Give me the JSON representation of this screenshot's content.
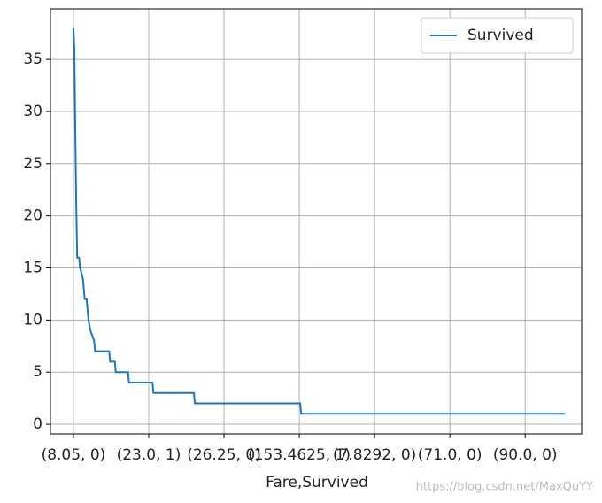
{
  "chart_data": {
    "type": "line",
    "xlabel": "Fare,Survived",
    "x": [
      0,
      0.5,
      1,
      1.5,
      2,
      3,
      3.5,
      5,
      6,
      7,
      7.5,
      8,
      9,
      10,
      11,
      11.5,
      19,
      19.5,
      22,
      22.5,
      29,
      29.5,
      42,
      42.5,
      64,
      64.5,
      120.5,
      121,
      261
    ],
    "series": [
      {
        "name": "Survived",
        "color": "#1f77b4",
        "values": [
          38,
          36,
          28,
          21,
          16,
          16,
          15,
          14,
          12,
          12,
          11,
          10,
          9,
          8.5,
          8,
          7,
          7,
          6,
          6,
          5,
          5,
          4,
          4,
          3,
          3,
          2,
          2,
          1,
          1
        ]
      }
    ],
    "xlim": [
      -12.2,
      270
    ],
    "ylim": [
      -0.93,
      39.85
    ],
    "xticks": [
      {
        "value": 0,
        "label": "(8.05, 0)"
      },
      {
        "value": 40,
        "label": "(23.0, 1)"
      },
      {
        "value": 80,
        "label": "(26.25, 0)"
      },
      {
        "value": 120,
        "label": "(153.4625, 1)"
      },
      {
        "value": 160,
        "label": "(7.8292, 0)"
      },
      {
        "value": 200,
        "label": "(71.0, 0)"
      },
      {
        "value": 240,
        "label": "(90.0, 0)"
      }
    ],
    "yticks": [
      0,
      5,
      10,
      15,
      20,
      25,
      30,
      35
    ],
    "grid": true,
    "legend": "upper right",
    "watermark": "https://blog.csdn.net/MaxQuYY"
  }
}
